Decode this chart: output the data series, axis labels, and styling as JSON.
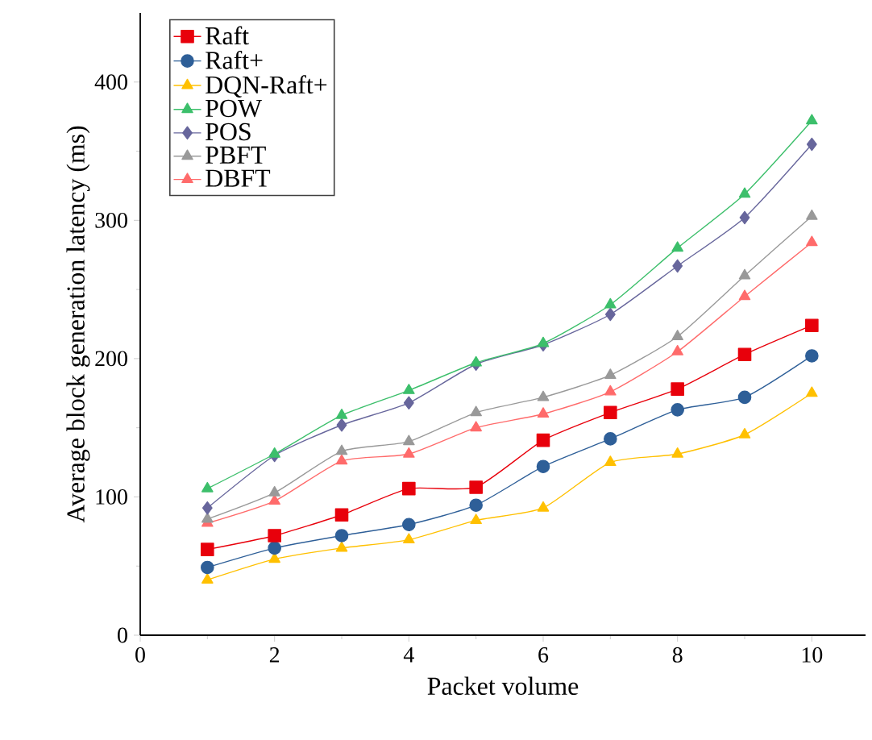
{
  "chart_data": {
    "type": "line",
    "xlabel": "Packet volume",
    "ylabel": "Average block generation latency (ms)",
    "x": [
      1,
      2,
      3,
      4,
      5,
      6,
      7,
      8,
      9,
      10
    ],
    "xlim": [
      0,
      10.8
    ],
    "ylim": [
      0,
      450
    ],
    "xticks": [
      0,
      2,
      4,
      6,
      8,
      10
    ],
    "yticks": [
      0,
      100,
      200,
      300,
      400
    ],
    "legend": "top left",
    "series": [
      {
        "name": "Raft",
        "color": "#e8000b",
        "marker": "square",
        "values": [
          62,
          72,
          87,
          106,
          107,
          141,
          161,
          178,
          203,
          224
        ]
      },
      {
        "name": "Raft+",
        "color": "#2e5f98",
        "marker": "circle",
        "values": [
          49,
          63,
          72,
          80,
          94,
          122,
          142,
          163,
          172,
          202
        ]
      },
      {
        "name": "DQN-Raft+",
        "color": "#ffc000",
        "marker": "triangle",
        "values": [
          40,
          55,
          63,
          69,
          83,
          92,
          125,
          131,
          145,
          175
        ]
      },
      {
        "name": "POW",
        "color": "#3cbf6b",
        "marker": "triangle",
        "values": [
          106,
          131,
          159,
          177,
          197,
          211,
          239,
          280,
          319,
          372
        ]
      },
      {
        "name": "POS",
        "color": "#67669c",
        "marker": "diamond",
        "values": [
          92,
          130,
          152,
          168,
          196,
          210,
          232,
          267,
          302,
          355
        ]
      },
      {
        "name": "PBFT",
        "color": "#999999",
        "marker": "triangle",
        "values": [
          84,
          103,
          133,
          140,
          161,
          172,
          188,
          216,
          260,
          303
        ]
      },
      {
        "name": "DBFT",
        "color": "#ff6b6b",
        "marker": "triangle",
        "values": [
          81,
          97,
          126,
          131,
          150,
          160,
          176,
          205,
          245,
          284
        ]
      }
    ]
  }
}
